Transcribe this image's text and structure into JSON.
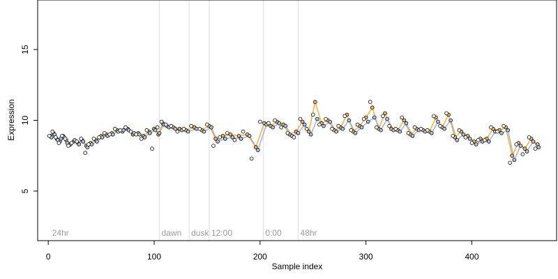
{
  "chart_data": {
    "type": "scatter",
    "title": "",
    "xlabel": "Sample index",
    "ylabel": "Expression",
    "xlim": [
      -10,
      480
    ],
    "ylim": [
      1.5,
      18.5
    ],
    "x_ticks": [
      0,
      100,
      200,
      300,
      400
    ],
    "y_ticks": [
      5,
      10,
      15
    ],
    "grid": false,
    "legend": "none",
    "colors": {
      "point_edge": "#000000",
      "fill_a": "#F5B35B",
      "fill_b": "#A9C6EB",
      "line_a": "#F5A623",
      "line_b": "#94A9CC",
      "divider": "#DCDCDC",
      "label": "#9A9A9A"
    },
    "dividers": [
      {
        "x": 105,
        "label": "dawn"
      },
      {
        "x": 133,
        "label": "dusk"
      },
      {
        "x": 152,
        "label": "12:00"
      },
      {
        "x": 203,
        "label": "0:00"
      },
      {
        "x": 236,
        "label": "48hr"
      }
    ],
    "start_label": {
      "x": 3,
      "label": "24hr"
    },
    "series": [
      {
        "fill": "#F5B35B",
        "line": "#F5A623",
        "x": [
          2,
          5,
          8,
          11,
          14,
          17,
          20,
          24,
          28,
          32,
          36,
          40,
          45,
          50,
          55,
          60,
          65,
          70,
          75,
          80,
          85,
          90,
          95,
          100,
          104,
          108,
          112,
          118,
          124,
          130,
          138,
          145,
          152,
          158,
          165,
          172,
          180,
          188,
          196,
          204,
          210,
          216,
          222,
          228,
          234,
          240,
          246,
          252,
          258,
          264,
          270,
          276,
          282,
          288,
          294,
          300,
          306,
          312,
          318,
          324,
          330,
          336,
          342,
          348,
          354,
          360,
          366,
          372,
          378,
          384,
          390,
          396,
          402,
          408,
          414,
          420,
          426,
          432,
          438,
          444,
          450,
          456,
          462
        ],
        "y": [
          8.9,
          9.1,
          8.7,
          8.5,
          8.9,
          8.6,
          8.3,
          8.5,
          8.4,
          8.6,
          8.2,
          8.4,
          8.6,
          8.9,
          9.0,
          9.1,
          9.3,
          9.2,
          9.4,
          9.0,
          9.1,
          8.9,
          9.2,
          9.4,
          9.0,
          9.8,
          9.6,
          9.5,
          9.4,
          9.3,
          9.5,
          9.3,
          9.6,
          8.7,
          8.9,
          9.0,
          8.9,
          9.0,
          8.1,
          9.8,
          9.6,
          9.9,
          9.7,
          9.0,
          9.2,
          9.9,
          9.2,
          11.3,
          9.8,
          10.0,
          9.3,
          9.5,
          10.4,
          9.2,
          9.6,
          10.2,
          10.9,
          9.4,
          10.5,
          9.4,
          9.3,
          10.0,
          9.0,
          9.4,
          9.3,
          9.2,
          10.2,
          9.5,
          10.4,
          8.8,
          9.2,
          8.9,
          8.5,
          8.7,
          8.7,
          9.4,
          9.3,
          9.5,
          7.5,
          8.4,
          8.0,
          8.7,
          8.3
        ]
      },
      {
        "fill": "#A9C6EB",
        "line": "#94A9CC",
        "x": [
          3,
          6,
          9,
          12,
          15,
          18,
          21,
          25,
          29,
          33,
          37,
          41,
          46,
          51,
          56,
          61,
          66,
          71,
          76,
          81,
          86,
          91,
          96,
          101,
          105,
          109,
          114,
          120,
          126,
          132,
          140,
          147,
          154,
          160,
          167,
          174,
          182,
          190,
          198,
          206,
          212,
          218,
          224,
          230,
          236,
          242,
          248,
          254,
          260,
          266,
          272,
          278,
          284,
          290,
          296,
          302,
          308,
          314,
          320,
          326,
          332,
          338,
          344,
          350,
          356,
          362,
          368,
          374,
          380,
          386,
          392,
          398,
          404,
          410,
          416,
          422,
          428,
          434,
          440,
          446,
          452,
          458,
          463
        ],
        "y": [
          8.8,
          9.0,
          8.6,
          8.7,
          8.8,
          8.4,
          8.3,
          8.6,
          8.3,
          8.5,
          8.1,
          8.3,
          8.5,
          8.8,
          8.9,
          9.0,
          9.2,
          9.3,
          9.3,
          9.1,
          9.0,
          8.8,
          9.1,
          9.3,
          9.1,
          9.7,
          9.5,
          9.4,
          9.3,
          9.2,
          9.4,
          9.2,
          9.5,
          8.5,
          8.7,
          8.8,
          8.7,
          8.9,
          7.9,
          9.7,
          9.5,
          9.8,
          9.6,
          8.9,
          9.1,
          9.7,
          9.0,
          10.1,
          9.6,
          9.9,
          9.2,
          9.4,
          10.0,
          9.1,
          9.5,
          9.9,
          10.2,
          9.3,
          10.1,
          9.3,
          9.2,
          9.8,
          8.9,
          9.3,
          9.2,
          9.1,
          9.9,
          9.4,
          10.0,
          8.6,
          9.0,
          8.7,
          8.3,
          8.5,
          8.5,
          9.2,
          9.1,
          9.3,
          7.2,
          8.2,
          7.8,
          8.5,
          8.1
        ]
      },
      {
        "fill": "#FFFFFF",
        "line": "none",
        "x": [
          1,
          4,
          7,
          10,
          13,
          16,
          19,
          22,
          27,
          31,
          35,
          38,
          43,
          48,
          53,
          58,
          63,
          68,
          73,
          78,
          83,
          88,
          93,
          98,
          103,
          107,
          111,
          116,
          122,
          128,
          135,
          143,
          150,
          156,
          162,
          169,
          176,
          184,
          192,
          200,
          208,
          214,
          220,
          226,
          232,
          238,
          244,
          250,
          256,
          262,
          268,
          274,
          280,
          286,
          292,
          298,
          304,
          310,
          316,
          322,
          328,
          334,
          340,
          346,
          352,
          358,
          364,
          370,
          376,
          382,
          388,
          394,
          400,
          406,
          412,
          418,
          424,
          430,
          436,
          442,
          448,
          454,
          460
        ],
        "y": [
          8.9,
          9.2,
          8.8,
          8.4,
          8.9,
          8.7,
          8.2,
          8.4,
          8.5,
          8.7,
          7.7,
          8.3,
          8.7,
          8.8,
          9.1,
          9.0,
          9.4,
          9.3,
          9.5,
          9.2,
          9.0,
          8.7,
          9.3,
          8.0,
          9.5,
          9.9,
          9.7,
          9.6,
          9.2,
          9.4,
          9.6,
          9.4,
          9.7,
          8.2,
          8.8,
          9.1,
          8.6,
          9.2,
          7.3,
          9.9,
          9.8,
          10.0,
          9.5,
          9.1,
          8.8,
          10.1,
          9.4,
          10.4,
          9.7,
          10.1,
          9.4,
          9.6,
          10.3,
          9.3,
          9.7,
          10.1,
          11.3,
          9.5,
          10.3,
          9.6,
          9.4,
          10.2,
          9.1,
          9.5,
          9.4,
          9.3,
          10.3,
          9.6,
          10.5,
          8.9,
          9.3,
          8.8,
          8.4,
          8.6,
          8.6,
          9.5,
          9.2,
          9.6,
          7.0,
          8.3,
          7.6,
          8.8,
          8.0
        ]
      }
    ]
  }
}
